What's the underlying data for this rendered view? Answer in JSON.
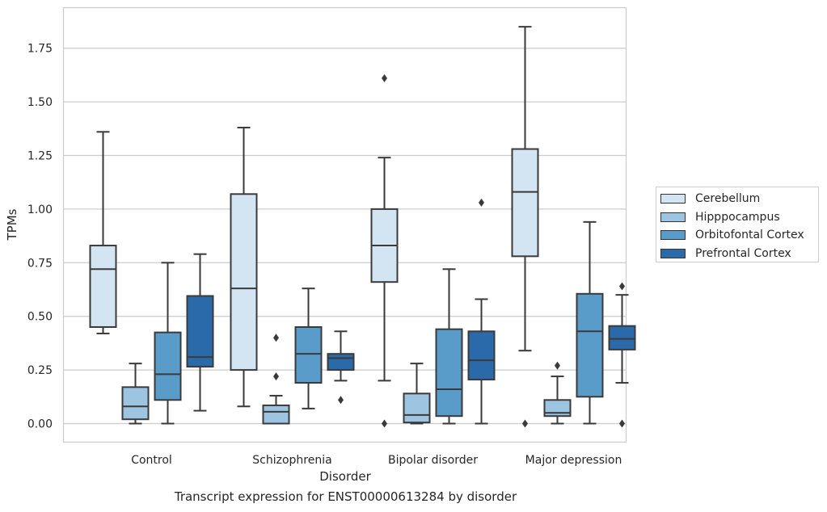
{
  "chart_data": {
    "type": "box",
    "xlabel": "Disorder",
    "ylabel": "TPMs",
    "caption": "Transcript expression for ENST00000613284 by disorder",
    "ylim": [
      -0.09,
      1.95
    ],
    "yticks": [
      "0.00",
      "0.25",
      "0.50",
      "0.75",
      "1.00",
      "1.25",
      "1.50",
      "1.75"
    ],
    "grid": true,
    "legend_position": "right",
    "categories": [
      "Control",
      "Schizophrenia",
      "Bipolar disorder",
      "Major depression"
    ],
    "series": [
      {
        "name": "Cerebellum",
        "color": "#d3e4f3",
        "boxes": [
          {
            "whislo": 0.42,
            "q1": 0.45,
            "med": 0.72,
            "q3": 0.83,
            "whishi": 1.36,
            "fliers": []
          },
          {
            "whislo": 0.08,
            "q1": 0.25,
            "med": 0.63,
            "q3": 1.07,
            "whishi": 1.38,
            "fliers": []
          },
          {
            "whislo": 0.2,
            "q1": 0.66,
            "med": 0.83,
            "q3": 1.0,
            "whishi": 1.24,
            "fliers": [
              0.0,
              1.61
            ]
          },
          {
            "whislo": 0.34,
            "q1": 0.78,
            "med": 1.08,
            "q3": 1.28,
            "whishi": 1.85,
            "fliers": [
              0.0
            ]
          }
        ]
      },
      {
        "name": "Hipppocampus",
        "color": "#9dc4e0",
        "boxes": [
          {
            "whislo": 0.0,
            "q1": 0.02,
            "med": 0.08,
            "q3": 0.17,
            "whishi": 0.28,
            "fliers": []
          },
          {
            "whislo": 0.0,
            "q1": 0.0,
            "med": 0.055,
            "q3": 0.085,
            "whishi": 0.13,
            "fliers": [
              0.22,
              0.4
            ]
          },
          {
            "whislo": 0.0,
            "q1": 0.005,
            "med": 0.04,
            "q3": 0.14,
            "whishi": 0.28,
            "fliers": []
          },
          {
            "whislo": 0.0,
            "q1": 0.035,
            "med": 0.05,
            "q3": 0.11,
            "whishi": 0.22,
            "fliers": [
              0.27
            ]
          }
        ]
      },
      {
        "name": "Orbitofontal Cortex",
        "color": "#5a9cc9",
        "boxes": [
          {
            "whislo": 0.0,
            "q1": 0.11,
            "med": 0.23,
            "q3": 0.425,
            "whishi": 0.75,
            "fliers": []
          },
          {
            "whislo": 0.07,
            "q1": 0.19,
            "med": 0.325,
            "q3": 0.45,
            "whishi": 0.63,
            "fliers": []
          },
          {
            "whislo": 0.0,
            "q1": 0.035,
            "med": 0.16,
            "q3": 0.44,
            "whishi": 0.72,
            "fliers": []
          },
          {
            "whislo": 0.0,
            "q1": 0.125,
            "med": 0.43,
            "q3": 0.605,
            "whishi": 0.94,
            "fliers": []
          }
        ]
      },
      {
        "name": "Prefrontal Cortex",
        "color": "#2a6aaa",
        "boxes": [
          {
            "whislo": 0.06,
            "q1": 0.265,
            "med": 0.31,
            "q3": 0.595,
            "whishi": 0.79,
            "fliers": []
          },
          {
            "whislo": 0.2,
            "q1": 0.25,
            "med": 0.305,
            "q3": 0.325,
            "whishi": 0.43,
            "fliers": [
              0.11
            ]
          },
          {
            "whislo": 0.0,
            "q1": 0.205,
            "med": 0.295,
            "q3": 0.43,
            "whishi": 0.58,
            "fliers": [
              1.03
            ]
          },
          {
            "whislo": 0.19,
            "q1": 0.345,
            "med": 0.395,
            "q3": 0.455,
            "whishi": 0.6,
            "fliers": [
              0.0,
              0.64
            ]
          }
        ]
      }
    ]
  }
}
